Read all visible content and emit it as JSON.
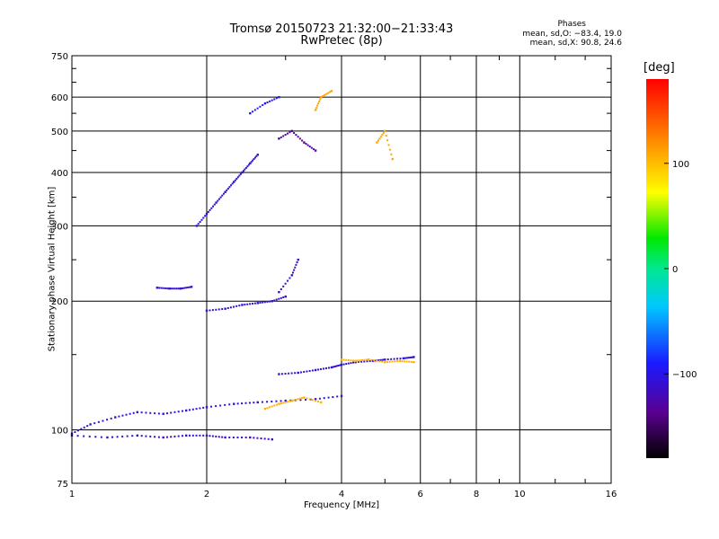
{
  "header": {
    "title_line1": "Tromsø 20150723 21:32:00−21:33:43",
    "title_line2": "RwPretec (8p)",
    "stats_heading": "Phases",
    "stats_o": "mean, sd,O: −83.4, 19.0",
    "stats_x": "mean, sd,X:  90.8, 24.6"
  },
  "chart_data": {
    "type": "scatter",
    "title": "Tromsø 20150723 21:32:00−21:33:43",
    "subtitle": "RwPretec (8p)",
    "xlabel": "Frequency [MHz]",
    "ylabel": "Stationary phase Virtual Height [km]",
    "x_scale": "log",
    "y_scale": "log",
    "xlim": [
      1,
      16
    ],
    "ylim": [
      75,
      750
    ],
    "x_ticks": [
      "1",
      "2",
      "4",
      "6",
      "8",
      "10",
      "16"
    ],
    "x_tick_values": [
      1,
      2,
      4,
      6,
      8,
      10,
      16
    ],
    "y_ticks": [
      "75",
      "100",
      "200",
      "300",
      "400",
      "500",
      "600",
      "750"
    ],
    "y_tick_values": [
      75,
      100,
      200,
      300,
      400,
      500,
      600,
      750
    ],
    "grid": true,
    "colorbar": {
      "label": "[deg]",
      "range": [
        -180,
        180
      ],
      "tick_labels": [
        "100",
        "0",
        "−100"
      ],
      "tick_values": [
        100,
        0,
        -100
      ]
    },
    "echo_traces": [
      {
        "x": [
          1.0,
          1.1,
          1.25,
          1.4,
          1.6,
          1.8,
          2.0,
          2.3,
          2.6,
          3.0,
          3.5,
          4.0
        ],
        "y": [
          98,
          103,
          107,
          110,
          109,
          111,
          113,
          115,
          116,
          117,
          118,
          120
        ],
        "phase": -105
      },
      {
        "x": [
          1.0,
          1.2,
          1.4,
          1.6,
          1.8,
          2.0,
          2.2,
          2.5,
          2.8
        ],
        "y": [
          97,
          96,
          97,
          96,
          97,
          97,
          96,
          96,
          95
        ],
        "phase": -115
      },
      {
        "x": [
          2.9,
          3.2,
          3.5,
          3.8,
          4.0,
          4.3,
          4.7,
          5.0,
          5.5,
          5.8
        ],
        "y": [
          135,
          136,
          138,
          140,
          142,
          144,
          145,
          146,
          147,
          148
        ],
        "phase": -110
      },
      {
        "x": [
          4.0,
          4.3,
          4.6,
          5.0,
          5.4,
          5.8
        ],
        "y": [
          146,
          145,
          146,
          144,
          145,
          144
        ],
        "phase": 105
      },
      {
        "x": [
          2.7,
          2.9,
          3.1,
          3.3,
          3.6
        ],
        "y": [
          112,
          115,
          117,
          119,
          116
        ],
        "phase": 105
      },
      {
        "x": [
          1.55,
          1.65,
          1.75,
          1.85
        ],
        "y": [
          215,
          214,
          214,
          216
        ],
        "phase": -110
      },
      {
        "x": [
          2.0,
          2.2,
          2.4,
          2.6,
          2.8,
          3.0
        ],
        "y": [
          190,
          192,
          196,
          198,
          200,
          205
        ],
        "phase": -110
      },
      {
        "x": [
          2.9,
          3.1,
          3.2
        ],
        "y": [
          210,
          230,
          250
        ],
        "phase": -115
      },
      {
        "x": [
          1.9,
          2.0,
          2.1,
          2.2,
          2.3,
          2.4,
          2.5,
          2.6
        ],
        "y": [
          300,
          320,
          340,
          360,
          380,
          400,
          420,
          440
        ],
        "phase": -110
      },
      {
        "x": [
          2.5,
          2.7,
          2.9
        ],
        "y": [
          550,
          580,
          600
        ],
        "phase": -95
      },
      {
        "x": [
          2.9,
          3.1,
          3.3,
          3.5
        ],
        "y": [
          480,
          500,
          470,
          450
        ],
        "phase": -130
      },
      {
        "x": [
          3.5,
          3.6,
          3.8
        ],
        "y": [
          560,
          600,
          620
        ],
        "phase": 110
      },
      {
        "x": [
          4.8,
          5.0,
          5.2
        ],
        "y": [
          470,
          500,
          430
        ],
        "phase": 110
      }
    ]
  }
}
